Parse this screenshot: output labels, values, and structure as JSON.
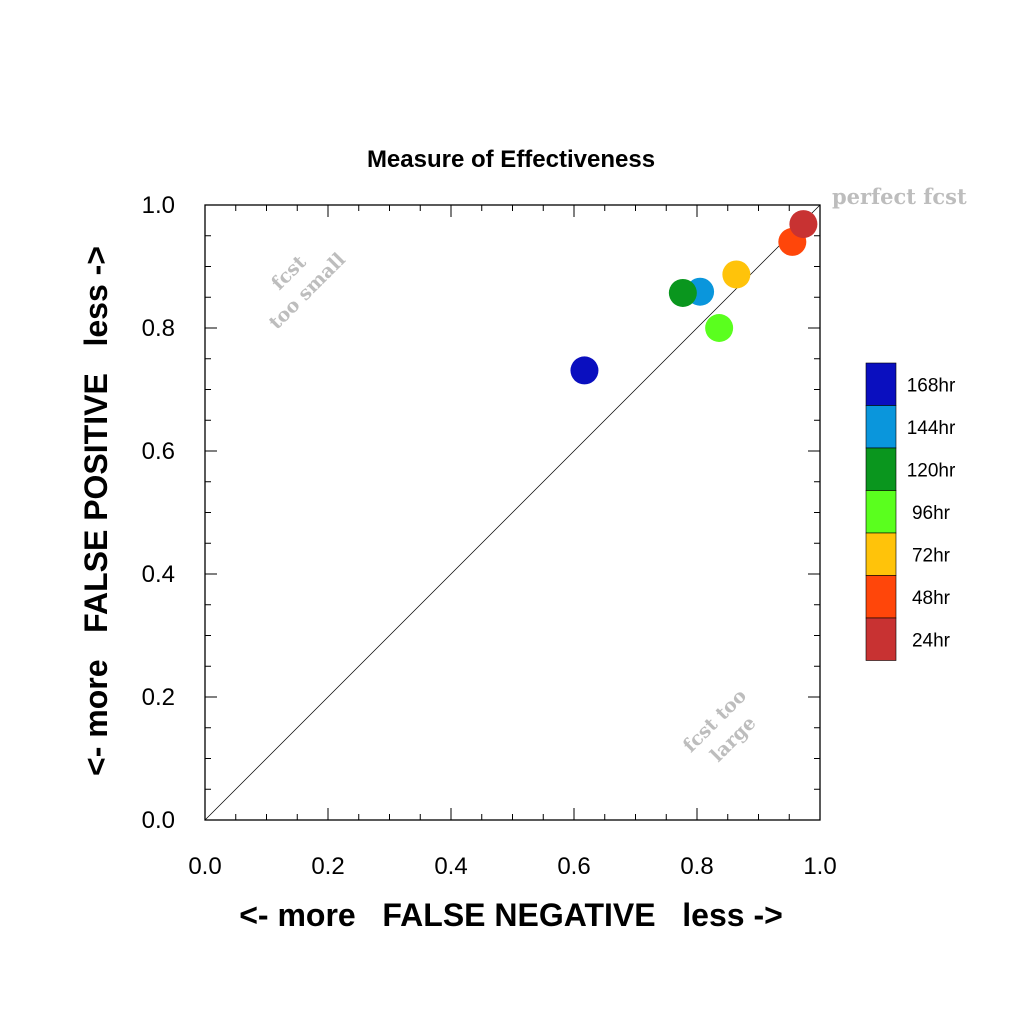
{
  "chart_data": {
    "type": "scatter",
    "title": "Measure of Effectiveness",
    "xlabel": "<- more   FALSE NEGATIVE   less ->",
    "ylabel": "<- more   FALSE POSITIVE   less ->",
    "xlim": [
      0.0,
      1.0
    ],
    "ylim": [
      0.0,
      1.0
    ],
    "x_ticks": [
      "0.0",
      "0.2",
      "0.4",
      "0.6",
      "0.8",
      "1.0"
    ],
    "y_ticks": [
      "0.0",
      "0.2",
      "0.4",
      "0.6",
      "0.8",
      "1.0"
    ],
    "grid": false,
    "legend_position": "right",
    "diagonal_line": true,
    "annotations": {
      "perfect": "perfect fcst",
      "too_small": [
        "fcst",
        "too small"
      ],
      "too_large": [
        "fcst too",
        "large"
      ]
    },
    "series": [
      {
        "name": "168hr",
        "color": "#0a0fbf",
        "x": 0.617,
        "y": 0.731
      },
      {
        "name": "144hr",
        "color": "#0a96dc",
        "x": 0.805,
        "y": 0.859
      },
      {
        "name": "120hr",
        "color": "#0a961e",
        "x": 0.777,
        "y": 0.857
      },
      {
        "name": "96hr",
        "color": "#5aff1e",
        "x": 0.836,
        "y": 0.8
      },
      {
        "name": "72hr",
        "color": "#ffc30a",
        "x": 0.864,
        "y": 0.887
      },
      {
        "name": "48hr",
        "color": "#ff460a",
        "x": 0.955,
        "y": 0.94
      },
      {
        "name": "24hr",
        "color": "#c83232",
        "x": 0.973,
        "y": 0.969
      }
    ]
  }
}
